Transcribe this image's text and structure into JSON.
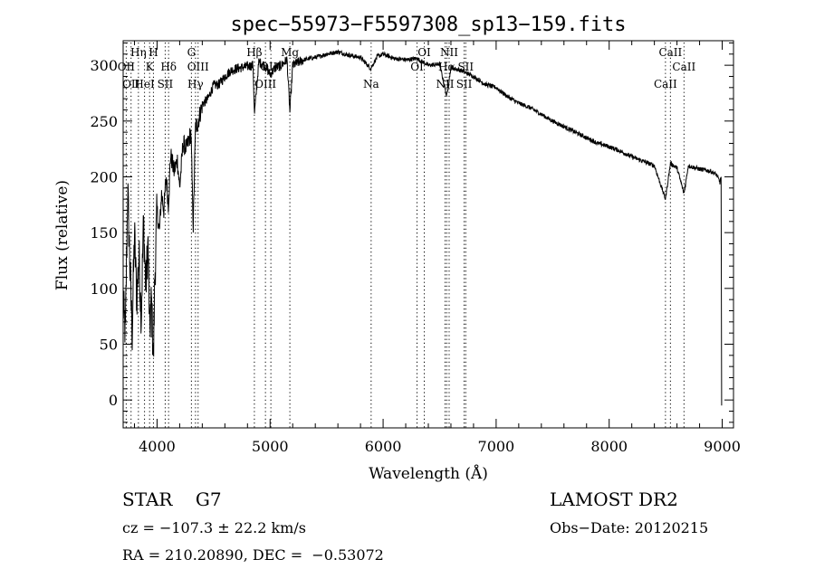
{
  "chart_data": {
    "type": "line",
    "title": "spec−55973−F5597308_sp13−159.fits",
    "xlabel": "Wavelength (Å)",
    "ylabel": "Flux (relative)",
    "xlim": [
      3700,
      9100
    ],
    "ylim": [
      -25,
      322
    ],
    "x_ticks": [
      4000,
      5000,
      6000,
      7000,
      8000,
      9000
    ],
    "y_ticks": [
      0,
      50,
      100,
      150,
      200,
      250,
      300
    ],
    "grid": false,
    "series": [
      {
        "x": [
          3700,
          3720,
          3740,
          3760,
          3780,
          3800,
          3820,
          3840,
          3860,
          3880,
          3900,
          3920,
          3935,
          3950,
          3968,
          3980,
          4000,
          4020,
          4040,
          4060,
          4080,
          4100,
          4120,
          4150,
          4180,
          4200,
          4230,
          4260,
          4300,
          4320,
          4340,
          4360,
          4400,
          4450,
          4500,
          4550,
          4600,
          4650,
          4700,
          4750,
          4800,
          4850,
          4861,
          4900,
          4950,
          5000,
          5050,
          5100,
          5150,
          5175,
          5200,
          5300,
          5400,
          5500,
          5600,
          5700,
          5800,
          5890,
          5950,
          6000,
          6100,
          6200,
          6300,
          6400,
          6500,
          6563,
          6600,
          6700,
          6800,
          6900,
          7000,
          7100,
          7200,
          7300,
          7400,
          7500,
          7600,
          7700,
          7800,
          7900,
          8000,
          8100,
          8200,
          8300,
          8400,
          8498,
          8542,
          8600,
          8662,
          8700,
          8800,
          8900,
          8950,
          8980,
          8990
        ],
        "y": [
          85,
          60,
          190,
          120,
          60,
          150,
          90,
          130,
          75,
          160,
          100,
          140,
          60,
          90,
          35,
          110,
          170,
          150,
          185,
          170,
          200,
          175,
          220,
          205,
          215,
          190,
          230,
          225,
          240,
          155,
          245,
          248,
          265,
          270,
          282,
          283,
          290,
          295,
          297,
          298,
          299,
          300,
          255,
          303,
          300,
          292,
          298,
          300,
          305,
          258,
          300,
          305,
          307,
          310,
          312,
          309,
          307,
          297,
          308,
          310,
          306,
          305,
          306,
          300,
          301,
          272,
          298,
          295,
          290,
          283,
          280,
          272,
          266,
          262,
          256,
          250,
          245,
          240,
          235,
          230,
          227,
          223,
          218,
          214,
          210,
          180,
          212,
          208,
          185,
          210,
          207,
          205,
          202,
          195,
          200
        ]
      }
    ],
    "lines": [
      {
        "wavelength": 3727,
        "label": "OII",
        "row": 2
      },
      {
        "wavelength": 3770,
        "label": "OII",
        "row": 3
      },
      {
        "wavelength": 3835,
        "label": "Hη",
        "row": 1
      },
      {
        "wavelength": 3889,
        "label": "HeI",
        "row": 3
      },
      {
        "wavelength": 3934,
        "label": "K",
        "row": 2
      },
      {
        "wavelength": 3968,
        "label": "H",
        "row": 1
      },
      {
        "wavelength": 4072,
        "label": "SII",
        "row": 3
      },
      {
        "wavelength": 4102,
        "label": "Hδ",
        "row": 2
      },
      {
        "wavelength": 4304,
        "label": "G",
        "row": 1
      },
      {
        "wavelength": 4340,
        "label": "Hγ",
        "row": 3
      },
      {
        "wavelength": 4363,
        "label": "OIII",
        "row": 2
      },
      {
        "wavelength": 4861,
        "label": "Hβ",
        "row": 1
      },
      {
        "wavelength": 4959,
        "label": "OIII",
        "row": 3
      },
      {
        "wavelength": 5007,
        "label": "OIII",
        "row": 2
      },
      {
        "wavelength": 5175,
        "label": "Mg",
        "row": 1
      },
      {
        "wavelength": 5894,
        "label": "Na",
        "row": 3
      },
      {
        "wavelength": 6300,
        "label": "OI",
        "row": 2
      },
      {
        "wavelength": 6364,
        "label": "OI",
        "row": 1
      },
      {
        "wavelength": 6548,
        "label": "NII",
        "row": 3
      },
      {
        "wavelength": 6563,
        "label": "Hα",
        "row": 2
      },
      {
        "wavelength": 6584,
        "label": "NII",
        "row": 1
      },
      {
        "wavelength": 6717,
        "label": "SII",
        "row": 3
      },
      {
        "wavelength": 6731,
        "label": "SII",
        "row": 2
      },
      {
        "wavelength": 8498,
        "label": "CaII",
        "row": 3
      },
      {
        "wavelength": 8542,
        "label": "CaII",
        "row": 1
      },
      {
        "wavelength": 8662,
        "label": "CaII",
        "row": 2
      }
    ]
  },
  "info": {
    "class_line": "STAR    G7",
    "survey": "LAMOST DR2",
    "cz": "cz = −107.3 ± 22.2 km/s",
    "obs_date": "Obs−Date: 20120215",
    "coords": "RA = 210.20890, DEC =  −0.53072"
  },
  "colors": {
    "foreground": "#000000",
    "background": "#ffffff"
  }
}
